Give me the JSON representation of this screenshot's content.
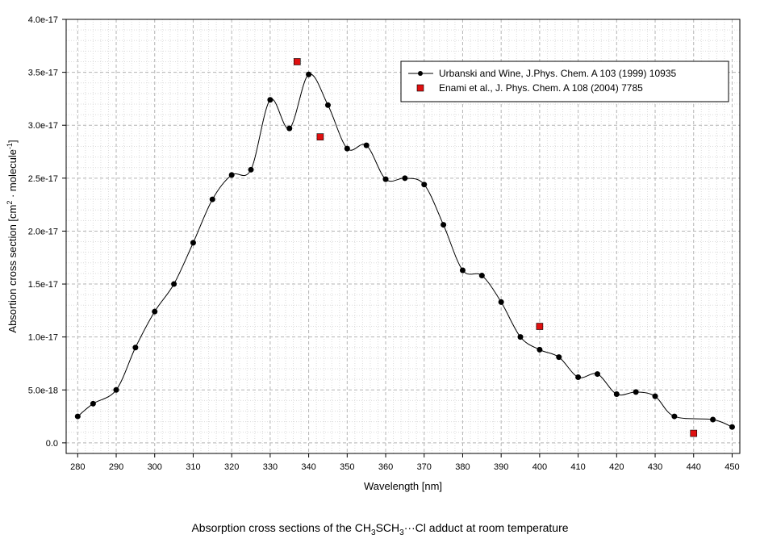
{
  "chart_data": {
    "type": "scatter",
    "xlabel": "Wavelength [nm]",
    "ylabel_parts": [
      "Absortion cross section [cm",
      "2",
      " · molecule",
      "-1",
      "]"
    ],
    "xlim": [
      277,
      452
    ],
    "ylim": [
      -1e-18,
      4e-17
    ],
    "xticks": [
      280,
      290,
      300,
      310,
      320,
      330,
      340,
      350,
      360,
      370,
      380,
      390,
      400,
      410,
      420,
      430,
      440,
      450
    ],
    "yticks": [
      {
        "value": 0,
        "label": "0.0"
      },
      {
        "value": 5e-18,
        "label": "5.0e-18"
      },
      {
        "value": 1e-17,
        "label": "1.0e-17"
      },
      {
        "value": 1.5e-17,
        "label": "1.5e-17"
      },
      {
        "value": 2e-17,
        "label": "2.0e-17"
      },
      {
        "value": 2.5e-17,
        "label": "2.5e-17"
      },
      {
        "value": 3e-17,
        "label": "3.0e-17"
      },
      {
        "value": 3.5e-17,
        "label": "3.5e-17"
      },
      {
        "value": 4e-17,
        "label": "4.0e-17"
      }
    ],
    "grid": true,
    "legend_position": "top-right",
    "series": [
      {
        "name": "Urbanski and Wine, J.Phys. Chem. A 103 (1999) 10935",
        "style": "line+circle",
        "color": "#000000",
        "x": [
          280,
          284,
          290,
          295,
          300,
          305,
          310,
          315,
          320,
          325,
          330,
          335,
          340,
          345,
          350,
          355,
          360,
          365,
          370,
          375,
          380,
          385,
          390,
          395,
          400,
          405,
          410,
          415,
          420,
          425,
          430,
          435,
          445,
          450
        ],
        "y": [
          2.5e-18,
          3.7e-18,
          5e-18,
          9e-18,
          1.24e-17,
          1.5e-17,
          1.89e-17,
          2.3e-17,
          2.53e-17,
          2.58e-17,
          3.24e-17,
          2.97e-17,
          3.48e-17,
          3.19e-17,
          2.78e-17,
          2.81e-17,
          2.49e-17,
          2.5e-17,
          2.44e-17,
          2.06e-17,
          1.63e-17,
          1.58e-17,
          1.33e-17,
          1e-17,
          8.8e-18,
          8.1e-18,
          6.2e-18,
          6.5e-18,
          4.6e-18,
          4.8e-18,
          4.4e-18,
          2.5e-18,
          2.2e-18,
          1.5e-18
        ]
      },
      {
        "name": "Enami et al., J. Phys. Chem. A 108 (2004) 7785",
        "style": "square",
        "color": "#e01010",
        "x": [
          337,
          343,
          400,
          440
        ],
        "y": [
          3.6e-17,
          2.89e-17,
          1.1e-17,
          9e-19
        ]
      }
    ]
  },
  "caption": {
    "prefix": "Absorption cross sections of the CH",
    "sub1": "3",
    "mid": "SCH",
    "sub2": "3",
    "suffix": "···Cl adduct at room temperature"
  }
}
